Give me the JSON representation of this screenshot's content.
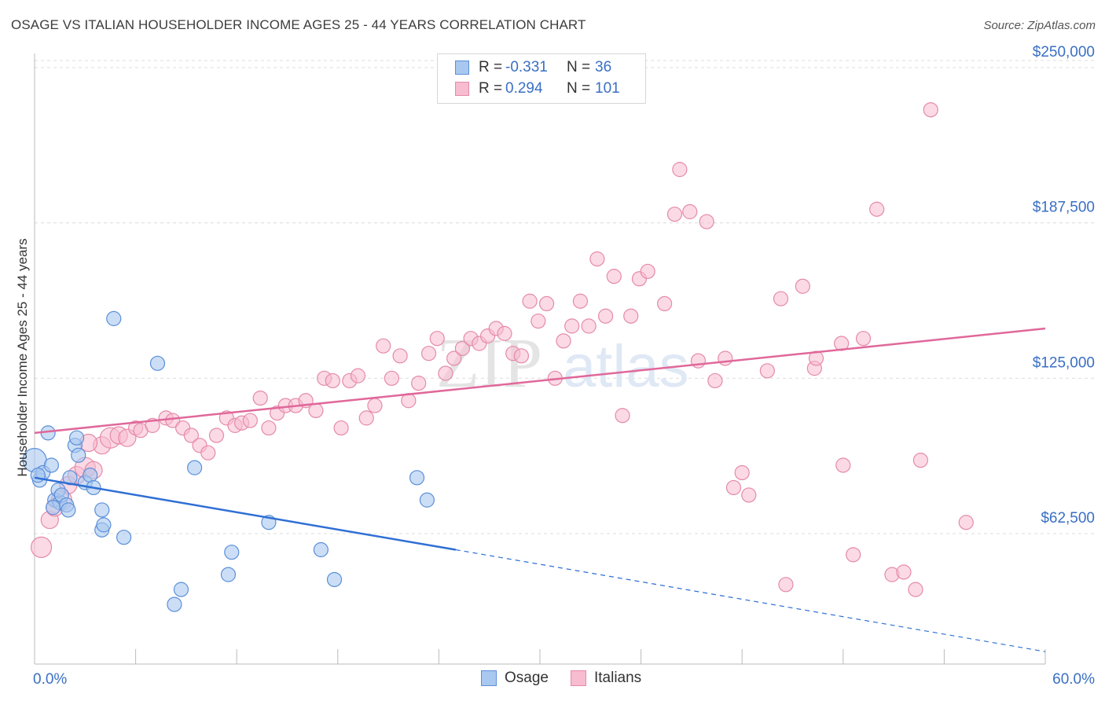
{
  "title": "OSAGE VS ITALIAN HOUSEHOLDER INCOME AGES 25 - 44 YEARS CORRELATION CHART",
  "source": "Source: ZipAtlas.com",
  "watermark": {
    "zip": "ZIP",
    "atlas": "atlas"
  },
  "legend": {
    "rows": [
      {
        "r_label": "R =",
        "r_value": "-0.331",
        "n_label": "N =",
        "n_value": "36"
      },
      {
        "r_label": "R =",
        "r_value": "0.294",
        "n_label": "N =",
        "n_value": "101"
      }
    ]
  },
  "bottom_legend": [
    "Osage",
    "Italians"
  ],
  "colors": {
    "osage_fill": "#a9c8f0",
    "osage_stroke": "#5b8fd9",
    "osage_line": "#2f6fd4",
    "italians_fill": "#f7bcd0",
    "italians_stroke": "#e58aa8",
    "italians_line": "#e0689a",
    "tick_label": "#3a6fc4",
    "grid": "#dcdcdc"
  },
  "chart_data": {
    "type": "scatter",
    "title": "OSAGE VS ITALIAN HOUSEHOLDER INCOME AGES 25 - 44 YEARS CORRELATION CHART",
    "xlabel": "",
    "ylabel": "Householder Income Ages 25 - 44 years",
    "xlim": [
      0,
      60
    ],
    "ylim": [
      10000,
      262000
    ],
    "x_tick_labels": [
      "0.0%",
      "60.0%"
    ],
    "y_ticks": [
      62500,
      125000,
      187500,
      250000
    ],
    "y_tick_labels": [
      "$62,500",
      "$125,000",
      "$187,500",
      "$250,000"
    ],
    "grid": true,
    "legend_position": "top-center",
    "series": [
      {
        "name": "Osage",
        "r": -0.331,
        "n": 36,
        "trend": {
          "x0": 0,
          "y0": 85000,
          "x1": 25,
          "y1": 56000,
          "dash_to_x": 60,
          "dash_to_y": 15000
        },
        "points": [
          [
            0,
            92000
          ],
          [
            0.3,
            84000
          ],
          [
            0.5,
            87000
          ],
          [
            0.8,
            103000
          ],
          [
            1.0,
            90000
          ],
          [
            1.2,
            76000
          ],
          [
            1.5,
            75000
          ],
          [
            1.1,
            73000
          ],
          [
            1.4,
            80000
          ],
          [
            1.6,
            78000
          ],
          [
            1.9,
            74000
          ],
          [
            2.0,
            72000
          ],
          [
            2.1,
            85000
          ],
          [
            2.4,
            98000
          ],
          [
            2.5,
            101000
          ],
          [
            2.6,
            94000
          ],
          [
            3.0,
            83000
          ],
          [
            3.3,
            86000
          ],
          [
            3.5,
            81000
          ],
          [
            4.0,
            72000
          ],
          [
            4.0,
            64000
          ],
          [
            4.1,
            66000
          ],
          [
            4.7,
            149000
          ],
          [
            5.3,
            61000
          ],
          [
            7.3,
            131000
          ],
          [
            8.3,
            34000
          ],
          [
            8.7,
            40000
          ],
          [
            9.5,
            89000
          ],
          [
            11.5,
            46000
          ],
          [
            11.7,
            55000
          ],
          [
            13.9,
            67000
          ],
          [
            17.0,
            56000
          ],
          [
            17.8,
            44000
          ],
          [
            22.7,
            85000
          ],
          [
            23.3,
            76000
          ],
          [
            0.2,
            86000
          ]
        ]
      },
      {
        "name": "Italians",
        "r": 0.294,
        "n": 101,
        "trend": {
          "x0": 0,
          "y0": 103000,
          "x1": 60,
          "y1": 145000
        },
        "points": [
          [
            0.4,
            57000
          ],
          [
            0.9,
            68000
          ],
          [
            1.2,
            73000
          ],
          [
            1.6,
            76000
          ],
          [
            2.0,
            82000
          ],
          [
            2.5,
            86000
          ],
          [
            3.0,
            89000
          ],
          [
            3.5,
            88000
          ],
          [
            4.0,
            98000
          ],
          [
            4.5,
            101000
          ],
          [
            5.0,
            102000
          ],
          [
            5.5,
            101000
          ],
          [
            6.0,
            105000
          ],
          [
            6.3,
            104000
          ],
          [
            7.0,
            106000
          ],
          [
            7.8,
            109000
          ],
          [
            8.2,
            108000
          ],
          [
            8.8,
            105000
          ],
          [
            9.3,
            102000
          ],
          [
            9.8,
            98000
          ],
          [
            10.3,
            95000
          ],
          [
            10.8,
            102000
          ],
          [
            11.4,
            109000
          ],
          [
            11.9,
            106000
          ],
          [
            12.3,
            107000
          ],
          [
            12.8,
            108000
          ],
          [
            13.4,
            117000
          ],
          [
            13.9,
            105000
          ],
          [
            14.4,
            111000
          ],
          [
            14.9,
            114000
          ],
          [
            15.5,
            114000
          ],
          [
            16.1,
            116000
          ],
          [
            16.7,
            112000
          ],
          [
            17.2,
            125000
          ],
          [
            17.7,
            124000
          ],
          [
            18.2,
            105000
          ],
          [
            18.7,
            124000
          ],
          [
            19.2,
            126000
          ],
          [
            19.7,
            109000
          ],
          [
            20.2,
            114000
          ],
          [
            20.7,
            138000
          ],
          [
            21.2,
            125000
          ],
          [
            21.7,
            134000
          ],
          [
            22.2,
            116000
          ],
          [
            22.8,
            123000
          ],
          [
            23.4,
            135000
          ],
          [
            23.9,
            141000
          ],
          [
            24.4,
            127000
          ],
          [
            24.9,
            133000
          ],
          [
            25.4,
            137000
          ],
          [
            25.9,
            141000
          ],
          [
            26.4,
            139000
          ],
          [
            26.9,
            142000
          ],
          [
            27.4,
            145000
          ],
          [
            27.9,
            143000
          ],
          [
            28.4,
            135000
          ],
          [
            28.9,
            134000
          ],
          [
            29.4,
            156000
          ],
          [
            29.9,
            148000
          ],
          [
            30.4,
            155000
          ],
          [
            30.9,
            125000
          ],
          [
            31.4,
            140000
          ],
          [
            31.9,
            146000
          ],
          [
            32.4,
            156000
          ],
          [
            32.9,
            146000
          ],
          [
            33.4,
            173000
          ],
          [
            33.9,
            150000
          ],
          [
            34.4,
            166000
          ],
          [
            34.9,
            110000
          ],
          [
            35.4,
            150000
          ],
          [
            35.9,
            165000
          ],
          [
            36.4,
            168000
          ],
          [
            37.4,
            155000
          ],
          [
            38.0,
            191000
          ],
          [
            38.3,
            209000
          ],
          [
            38.9,
            192000
          ],
          [
            39.4,
            132000
          ],
          [
            39.9,
            188000
          ],
          [
            40.4,
            124000
          ],
          [
            41.0,
            133000
          ],
          [
            41.5,
            81000
          ],
          [
            42.0,
            87000
          ],
          [
            42.4,
            78000
          ],
          [
            43.5,
            128000
          ],
          [
            44.3,
            157000
          ],
          [
            44.6,
            42000
          ],
          [
            45.6,
            162000
          ],
          [
            46.3,
            129000
          ],
          [
            46.4,
            133000
          ],
          [
            47.9,
            139000
          ],
          [
            48.0,
            90000
          ],
          [
            48.6,
            54000
          ],
          [
            49.2,
            141000
          ],
          [
            50.0,
            193000
          ],
          [
            50.9,
            46000
          ],
          [
            51.6,
            47000
          ],
          [
            52.3,
            40000
          ],
          [
            52.6,
            92000
          ],
          [
            53.2,
            233000
          ],
          [
            55.3,
            67000
          ],
          [
            3.2,
            99000
          ]
        ]
      }
    ]
  }
}
